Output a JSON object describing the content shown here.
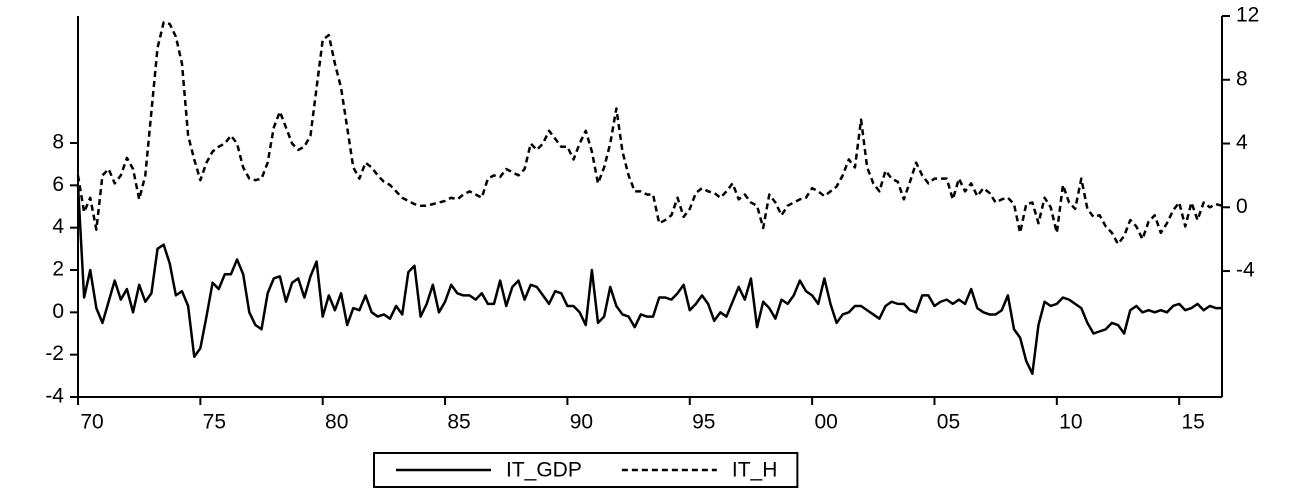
{
  "chart_data": {
    "type": "line",
    "x": [
      1970,
      1970.25,
      1970.5,
      1970.75,
      1971,
      1971.25,
      1971.5,
      1971.75,
      1972,
      1972.25,
      1972.5,
      1972.75,
      1973,
      1973.25,
      1973.5,
      1973.75,
      1974,
      1974.25,
      1974.5,
      1974.75,
      1975,
      1975.25,
      1975.5,
      1975.75,
      1976,
      1976.25,
      1976.5,
      1976.75,
      1977,
      1977.25,
      1977.5,
      1977.75,
      1978,
      1978.25,
      1978.5,
      1978.75,
      1979,
      1979.25,
      1979.5,
      1979.75,
      1980,
      1980.25,
      1980.5,
      1980.75,
      1981,
      1981.25,
      1981.5,
      1981.75,
      1982,
      1982.25,
      1982.5,
      1982.75,
      1983,
      1983.25,
      1983.5,
      1983.75,
      1984,
      1984.25,
      1984.5,
      1984.75,
      1985,
      1985.25,
      1985.5,
      1985.75,
      1986,
      1986.25,
      1986.5,
      1986.75,
      1987,
      1987.25,
      1987.5,
      1987.75,
      1988,
      1988.25,
      1988.5,
      1988.75,
      1989,
      1989.25,
      1989.5,
      1989.75,
      1990,
      1990.25,
      1990.5,
      1990.75,
      1991,
      1991.25,
      1991.5,
      1991.75,
      1992,
      1992.25,
      1992.5,
      1992.75,
      1993,
      1993.25,
      1993.5,
      1993.75,
      1994,
      1994.25,
      1994.5,
      1994.75,
      1995,
      1995.25,
      1995.5,
      1995.75,
      1996,
      1996.25,
      1996.5,
      1996.75,
      1997,
      1997.25,
      1997.5,
      1997.75,
      1998,
      1998.25,
      1998.5,
      1998.75,
      1999,
      1999.25,
      1999.5,
      1999.75,
      2000,
      2000.25,
      2000.5,
      2000.75,
      2001,
      2001.25,
      2001.5,
      2001.75,
      2002,
      2002.25,
      2002.5,
      2002.75,
      2003,
      2003.25,
      2003.5,
      2003.75,
      2004,
      2004.25,
      2004.5,
      2004.75,
      2005,
      2005.25,
      2005.5,
      2005.75,
      2006,
      2006.25,
      2006.5,
      2006.75,
      2007,
      2007.25,
      2007.5,
      2007.75,
      2008,
      2008.25,
      2008.5,
      2008.75,
      2009,
      2009.25,
      2009.5,
      2009.75,
      2010,
      2010.25,
      2010.5,
      2010.75,
      2011,
      2011.25,
      2011.5,
      2011.75,
      2012,
      2012.25,
      2012.5,
      2012.75,
      2013,
      2013.25,
      2013.5,
      2013.75,
      2014,
      2014.25,
      2014.5,
      2014.75,
      2015,
      2015.25,
      2015.5,
      2015.75,
      2016,
      2016.25,
      2016.5,
      2016.75
    ],
    "series": [
      {
        "name": "IT_GDP",
        "color": "#000000",
        "dashed": false,
        "values": [
          6,
          0.7,
          2.0,
          0.2,
          -0.5,
          0.5,
          1.5,
          0.6,
          1.1,
          0,
          1.3,
          0.5,
          0.9,
          3.0,
          3.2,
          2.3,
          0.8,
          1.0,
          0.3,
          -2.1,
          -1.7,
          -0.2,
          1.4,
          1.1,
          1.8,
          1.8,
          2.5,
          1.8,
          0,
          -0.6,
          -0.8,
          0.9,
          1.6,
          1.7,
          0.5,
          1.4,
          1.6,
          0.7,
          1.7,
          2.4,
          -0.2,
          0.8,
          0.1,
          0.9,
          -0.6,
          0.2,
          0.1,
          0.8,
          0,
          -0.2,
          -0.1,
          -0.3,
          0.3,
          -0.1,
          1.9,
          2.2,
          -0.2,
          0.4,
          1.3,
          0,
          0.5,
          1.3,
          0.9,
          0.8,
          0.8,
          0.6,
          0.9,
          0.4,
          0.4,
          1.5,
          0.3,
          1.2,
          1.5,
          0.6,
          1.3,
          1.2,
          0.8,
          0.4,
          1.0,
          0.9,
          0.3,
          0.3,
          0,
          -0.6,
          2.0,
          -0.5,
          -0.2,
          1.2,
          0.3,
          -0.1,
          -0.2,
          -0.7,
          -0.1,
          -0.2,
          -0.2,
          0.7,
          0.7,
          0.6,
          0.9,
          1.3,
          0.1,
          0.4,
          0.8,
          0.4,
          -0.4,
          0,
          -0.2,
          0.5,
          1.2,
          0.6,
          1.6,
          -0.7,
          0.5,
          0.2,
          -0.3,
          0.6,
          0.4,
          0.8,
          1.5,
          1.0,
          0.8,
          0.4,
          1.6,
          0.4,
          -0.5,
          -0.1,
          0,
          0.3,
          0.3,
          0.1,
          -0.1,
          -0.3,
          0.3,
          0.5,
          0.4,
          0.4,
          0.1,
          0,
          0.8,
          0.8,
          0.3,
          0.5,
          0.6,
          0.4,
          0.6,
          0.4,
          1.1,
          0.2,
          0,
          -0.1,
          -0.1,
          0.1,
          0.8,
          -0.8,
          -1.2,
          -2.3,
          -2.9,
          -0.6,
          0.5,
          0.3,
          0.4,
          0.7,
          0.6,
          0.4,
          0.2,
          -0.5,
          -1.0,
          -0.9,
          -0.8,
          -0.5,
          -0.6,
          -1.0,
          0.1,
          0.3,
          0,
          0.1,
          0,
          0.1,
          0,
          0.3,
          0.4,
          0.1,
          0.2,
          0.4,
          0.1,
          0.3,
          0.2,
          0.2
        ]
      },
      {
        "name": "IT_H",
        "color": "#000000",
        "dashed": true,
        "axis": "y2",
        "values": [
          2.0,
          -0.3,
          0.6,
          -1.4,
          2.0,
          2.4,
          1.5,
          2.0,
          3.1,
          2.4,
          0.5,
          2.0,
          6.0,
          10.0,
          11.6,
          11.5,
          10.7,
          9.0,
          4.5,
          3.0,
          1.7,
          2.8,
          3.5,
          3.8,
          4.0,
          4.5,
          4.0,
          2.5,
          1.8,
          1.7,
          1.8,
          2.8,
          5.0,
          6.0,
          5.0,
          4.0,
          3.6,
          3.8,
          4.5,
          7.5,
          10.5,
          10.8,
          9.0,
          7.5,
          5.0,
          2.5,
          1.8,
          2.8,
          2.5,
          2.0,
          1.6,
          1.4,
          1.0,
          0.6,
          0.4,
          0.2,
          0.1,
          0.1,
          0.2,
          0.3,
          0.4,
          0.6,
          0.5,
          0.8,
          1.0,
          0.8,
          0.6,
          1.8,
          2.0,
          1.9,
          2.4,
          2.2,
          2.0,
          2.4,
          4.0,
          3.6,
          4.0,
          4.8,
          4.3,
          3.8,
          3.8,
          3.0,
          4.0,
          4.8,
          3.5,
          1.5,
          2.5,
          4.0,
          6.2,
          3.5,
          2.0,
          1.0,
          1.0,
          0.8,
          0.8,
          -1.0,
          -0.8,
          -0.5,
          0.6,
          -0.6,
          -0.1,
          0.9,
          1.2,
          1.0,
          0.9,
          0.6,
          1.0,
          1.5,
          0.5,
          0.8,
          0.3,
          0.1,
          -1.3,
          0.8,
          0.3,
          -0.5,
          0.1,
          0.3,
          0.5,
          0.6,
          1.2,
          1.0,
          0.7,
          1.0,
          1.3,
          2.0,
          3.0,
          2.5,
          5.5,
          2.5,
          1.5,
          1.0,
          2.3,
          1.8,
          1.6,
          0.5,
          1.6,
          2.8,
          2.0,
          1.5,
          1.8,
          1.8,
          1.8,
          0.5,
          1.8,
          1.0,
          1.5,
          0.7,
          1.2,
          0.9,
          0.3,
          0.5,
          0.6,
          0.2,
          -1.6,
          0.2,
          0.3,
          -1.0,
          0.6,
          0,
          -1.6,
          1.4,
          0.3,
          -0.1,
          1.8,
          -0.1,
          -0.6,
          -0.5,
          -1.2,
          -1.6,
          -2.3,
          -1.8,
          -0.8,
          -1.2,
          -2.0,
          -0.9,
          -0.5,
          -1.6,
          -1.0,
          -0.2,
          0.3,
          -1.2,
          0.3,
          -0.8,
          0.3,
          0,
          0.2,
          0.1
        ]
      }
    ],
    "xlim": [
      1970,
      2016.75
    ],
    "xticks": [
      {
        "value": 1970,
        "label": "70"
      },
      {
        "value": 1975,
        "label": "75"
      },
      {
        "value": 1980,
        "label": "80"
      },
      {
        "value": 1985,
        "label": "85"
      },
      {
        "value": 1990,
        "label": "90"
      },
      {
        "value": 1995,
        "label": "95"
      },
      {
        "value": 2000,
        "label": "00"
      },
      {
        "value": 2005,
        "label": "05"
      },
      {
        "value": 2010,
        "label": "10"
      },
      {
        "value": 2015,
        "label": "15"
      }
    ],
    "ylim": [
      -4,
      14
    ],
    "yticks": [
      -4,
      -2,
      0,
      2,
      4,
      6,
      8
    ],
    "y2lim": [
      -11.9,
      12
    ],
    "y2ticks": [
      -4,
      0,
      4,
      8,
      12
    ],
    "grid": false,
    "legend": "bottom"
  }
}
